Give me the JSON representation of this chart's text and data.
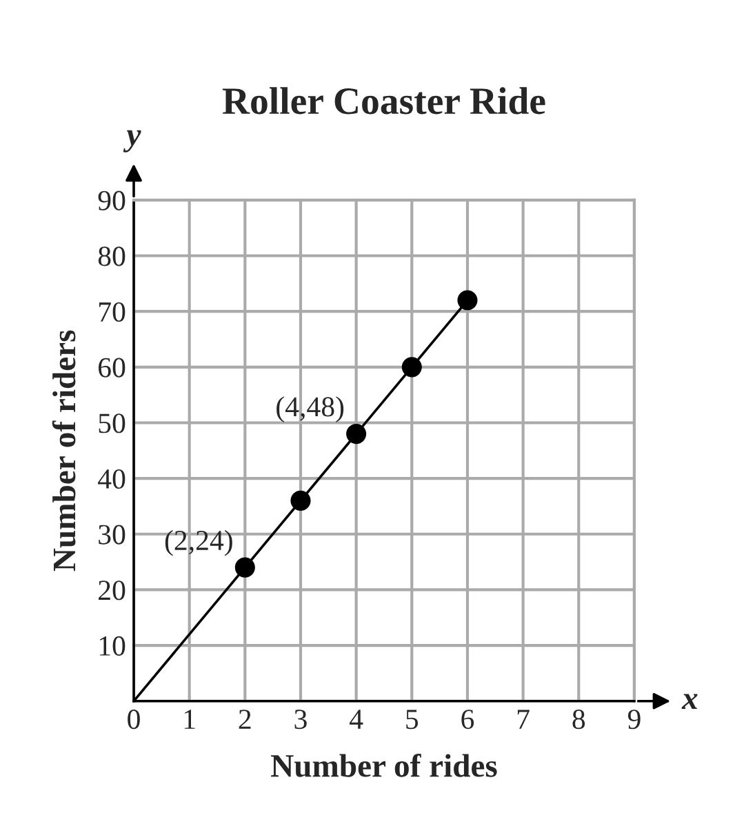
{
  "chart_data": {
    "type": "line",
    "title": "Roller Coaster Ride",
    "xlabel": "Number of rides",
    "ylabel": "Number of riders",
    "series": [
      {
        "x": [
          0,
          6
        ],
        "values": [
          0,
          72
        ],
        "color": "#000000",
        "marker": "none"
      },
      {
        "type": "scatter",
        "x": [
          2,
          3,
          4,
          5,
          6
        ],
        "values": [
          24,
          36,
          48,
          60,
          72
        ],
        "color": "#000000",
        "marker": "circle"
      }
    ],
    "annotations": [
      {
        "text": "(2,24)",
        "x": 2,
        "y": 24
      },
      {
        "text": "(4,48)",
        "x": 4,
        "y": 48
      },
      "x",
      "y"
    ],
    "xlim": [
      0,
      9
    ],
    "ylim": [
      0,
      90
    ],
    "xticks": [
      0,
      1,
      2,
      3,
      4,
      5,
      6,
      7,
      8,
      9
    ],
    "yticks": [
      {
        "value": 0,
        "label": null
      },
      10,
      20,
      30,
      40,
      50,
      60,
      70,
      80,
      90
    ],
    "grid": true,
    "legend": false
  }
}
